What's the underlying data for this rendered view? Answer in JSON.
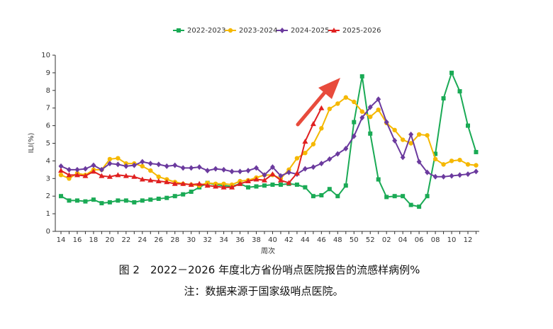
{
  "chart_data": {
    "type": "line",
    "y_label": "ILI(%)",
    "x_label": "周次",
    "caption": "图 2　2022－2026 年度北方省份哨点医院报告的流感样病例%",
    "note": "注：数据来源于国家级哨点医院。",
    "categories": [
      "14",
      null,
      "16",
      null,
      "18",
      null,
      "20",
      null,
      "22",
      null,
      "24",
      null,
      "26",
      null,
      "28",
      null,
      "30",
      null,
      "32",
      null,
      "34",
      null,
      "36",
      null,
      "38",
      null,
      "40",
      null,
      "42",
      null,
      "44",
      null,
      "46",
      null,
      "48",
      null,
      "50",
      null,
      "52",
      null,
      "02",
      null,
      "04",
      null,
      "06",
      null,
      "08",
      null,
      "10",
      null,
      "12",
      null
    ],
    "ylim": [
      0,
      10
    ],
    "yticks": [
      0,
      1,
      2,
      3,
      4,
      5,
      6,
      7,
      8,
      9,
      10
    ],
    "legend": "top",
    "series": [
      {
        "name": "2022-2023",
        "color": "#1aaa55",
        "marker": "square",
        "values": [
          2.0,
          1.75,
          1.75,
          1.7,
          1.8,
          1.6,
          1.65,
          1.75,
          1.75,
          1.65,
          1.75,
          1.8,
          1.85,
          1.9,
          2.0,
          2.1,
          2.25,
          2.5,
          2.75,
          2.65,
          2.6,
          2.55,
          2.7,
          2.5,
          2.55,
          2.6,
          2.65,
          2.65,
          2.7,
          2.65,
          2.5,
          2.0,
          2.05,
          2.4,
          2.0,
          2.6,
          6.2,
          8.8,
          5.55,
          2.95,
          1.95,
          2.0,
          2.0,
          1.5,
          1.4,
          2.0,
          4.4,
          7.55,
          9.0,
          7.95,
          6.0,
          4.5
        ]
      },
      {
        "name": "2023-2024",
        "color": "#f5b800",
        "marker": "circle",
        "values": [
          3.2,
          3.0,
          3.3,
          3.2,
          3.5,
          3.5,
          4.1,
          4.15,
          3.85,
          3.85,
          3.7,
          3.45,
          3.1,
          2.95,
          2.8,
          2.7,
          2.65,
          2.6,
          2.75,
          2.7,
          2.7,
          2.65,
          2.85,
          2.9,
          3.05,
          3.2,
          3.2,
          3.0,
          3.5,
          4.15,
          4.45,
          4.95,
          5.85,
          6.95,
          7.25,
          7.6,
          7.35,
          6.8,
          6.5,
          6.9,
          6.15,
          5.75,
          5.2,
          5.0,
          5.5,
          5.45,
          4.1,
          3.8,
          4.0,
          4.05,
          3.8,
          3.75
        ]
      },
      {
        "name": "2024-2025",
        "color": "#6b3a9e",
        "marker": "diamond",
        "values": [
          3.7,
          3.5,
          3.5,
          3.55,
          3.75,
          3.5,
          3.85,
          3.8,
          3.7,
          3.75,
          3.95,
          3.85,
          3.8,
          3.7,
          3.75,
          3.6,
          3.6,
          3.65,
          3.45,
          3.55,
          3.5,
          3.4,
          3.4,
          3.45,
          3.6,
          3.2,
          3.65,
          3.15,
          3.35,
          3.25,
          3.55,
          3.65,
          3.85,
          4.1,
          4.4,
          4.7,
          5.4,
          6.45,
          7.05,
          7.5,
          6.2,
          5.15,
          4.2,
          5.5,
          3.95,
          3.35,
          3.1,
          3.1,
          3.15,
          3.2,
          3.25,
          3.4
        ]
      },
      {
        "name": "2025-2026",
        "color": "#e02020",
        "marker": "triangle",
        "values": [
          3.45,
          3.2,
          3.2,
          3.15,
          3.4,
          3.15,
          3.1,
          3.2,
          3.15,
          3.1,
          2.95,
          2.9,
          2.85,
          2.8,
          2.7,
          2.7,
          2.65,
          2.7,
          2.6,
          2.55,
          2.5,
          2.5,
          2.7,
          2.85,
          2.95,
          2.9,
          3.25,
          2.9,
          2.75,
          3.3,
          5.1,
          6.1,
          7.0,
          null,
          null,
          null,
          null,
          null,
          null,
          null,
          null,
          null,
          null,
          null,
          null,
          null,
          null,
          null,
          null,
          null,
          null,
          null
        ]
      }
    ]
  }
}
